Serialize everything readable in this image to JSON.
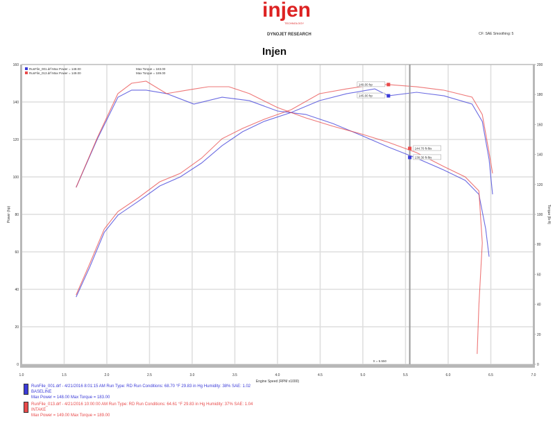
{
  "header": {
    "logo_text": "injen",
    "logo_subtext": "TECHNOLOGY",
    "company": "DYNOJET RESEARCH",
    "title": "Injen",
    "settings": "CF: SAE   Smoothing: 5"
  },
  "colors": {
    "baseline": "#3a3ad8",
    "intake": "#e84a4a",
    "grid": "#d8d8d8",
    "axis": "#9a9a9a"
  },
  "chart_data": {
    "type": "line",
    "xlabel": "Engine Speed (RPM x1000)",
    "ylabel_left": "Power (hp)",
    "ylabel_right": "Torque (lb-ft)",
    "xlim": [
      1.0,
      7.0
    ],
    "ylim_left": [
      0,
      160
    ],
    "ylim_right": [
      0,
      200
    ],
    "x_ticks": [
      "1.0",
      "1.5",
      "2.0",
      "2.5",
      "3.0",
      "3.5",
      "4.0",
      "4.5",
      "5.0",
      "5.5",
      "6.0",
      "6.5",
      "7.0"
    ],
    "y_ticks_left": [
      "0",
      "20",
      "40",
      "60",
      "80",
      "100",
      "120",
      "140",
      "160"
    ],
    "y_ticks_right": [
      "0",
      "20",
      "40",
      "60",
      "80",
      "100",
      "120",
      "140",
      "160",
      "180",
      "200"
    ],
    "grid": true,
    "legend_top": [
      {
        "text": "RunFile_001.drf Max Power = 148.00",
        "torque": "Max Torque = 183.00"
      },
      {
        "text": "RunFile_013.drf Max Power = 149.00",
        "torque": "Max Torque = 189.00"
      }
    ],
    "series": [
      {
        "name": "RunFile_001.drf",
        "quantity": "power",
        "axis": "left",
        "color": "#3a3ad8",
        "x": [
          1.64,
          1.8,
          1.97,
          2.13,
          2.37,
          2.62,
          2.86,
          3.11,
          3.35,
          3.59,
          3.84,
          4.16,
          4.49,
          4.81,
          5.14,
          5.3,
          5.63,
          5.95,
          6.28,
          6.4,
          6.48,
          6.52
        ],
        "y": [
          35.9,
          51.9,
          70.4,
          79.6,
          87.0,
          95.2,
          100.0,
          107.4,
          116.7,
          124.1,
          129.6,
          134.4,
          140.7,
          144.4,
          147.0,
          143.3,
          145.2,
          143.3,
          138.9,
          129.6,
          109.3,
          90.7
        ]
      },
      {
        "name": "RunFile_013.drf",
        "quantity": "power",
        "axis": "left",
        "color": "#e84a4a",
        "x": [
          1.64,
          1.8,
          1.97,
          2.13,
          2.37,
          2.62,
          2.86,
          3.11,
          3.35,
          3.59,
          3.84,
          4.16,
          4.49,
          4.81,
          5.14,
          5.3,
          5.63,
          5.95,
          6.28,
          6.4,
          6.48,
          6.52
        ],
        "y": [
          37.0,
          53.7,
          72.2,
          81.5,
          88.9,
          97.4,
          101.9,
          110.0,
          120.4,
          125.9,
          130.7,
          135.9,
          144.4,
          147.0,
          149.3,
          149.3,
          148.1,
          146.3,
          142.6,
          133.3,
          113.0,
          101.9
        ]
      },
      {
        "name": "RunFile_001.drf",
        "quantity": "torque",
        "axis": "right",
        "color": "#3a3ad8",
        "x": [
          1.64,
          1.89,
          2.13,
          2.29,
          2.46,
          2.7,
          3.02,
          3.35,
          3.67,
          4.0,
          4.33,
          4.65,
          4.98,
          5.3,
          5.63,
          5.95,
          6.2,
          6.36,
          6.44,
          6.48
        ],
        "y": [
          118.0,
          150.5,
          178.2,
          182.9,
          182.9,
          180.6,
          173.6,
          178.2,
          175.9,
          169.0,
          166.7,
          160.6,
          152.8,
          144.9,
          137.5,
          129.6,
          122.7,
          113.4,
          90.3,
          71.8
        ]
      },
      {
        "name": "RunFile_013.drf",
        "quantity": "torque",
        "axis": "right",
        "color": "#e84a4a",
        "x": [
          1.64,
          1.89,
          2.13,
          2.29,
          2.46,
          2.7,
          2.94,
          3.19,
          3.43,
          3.67,
          4.0,
          4.33,
          4.65,
          4.98,
          5.3,
          5.63,
          5.95,
          6.2,
          6.36,
          6.4,
          6.36,
          6.34
        ],
        "y": [
          118.0,
          151.4,
          180.6,
          187.5,
          188.9,
          180.6,
          182.9,
          185.2,
          185.2,
          180.6,
          171.3,
          164.4,
          158.8,
          153.7,
          148.1,
          141.2,
          131.9,
          125.0,
          115.7,
          81.0,
          39.4,
          6.9
        ]
      }
    ],
    "cursor": {
      "x": 5.55,
      "label": "X = 5.550"
    },
    "annotations": [
      {
        "text": "149.00 hp",
        "color": "#e84a4a",
        "x": 5.3,
        "y": 149.3,
        "axis": "left"
      },
      {
        "text": "145.00 hp",
        "color": "#3a3ad8",
        "x": 5.3,
        "y": 143.3,
        "axis": "left"
      },
      {
        "text": "144.70 ft-lbs",
        "color": "#e84a4a",
        "x": 5.55,
        "y": 144.0,
        "axis": "right"
      },
      {
        "text": "138.30 ft-lbs",
        "color": "#3a3ad8",
        "x": 5.55,
        "y": 138.0,
        "axis": "right"
      }
    ]
  },
  "legend_bottom": [
    {
      "color": "#3a3ad8",
      "line1": "RunFile_001.drf - 4/21/2016 8:01:15 AM  Run Type: RD  Run Conditions: 68.70 °F 29.83 in Hg  Humidity: 38%  SAE: 1.02",
      "line2": "BASELINE",
      "line3": "Max Power = 148.00  Max Torque = 183.00"
    },
    {
      "color": "#e84a4a",
      "line1": "RunFile_013.drf - 4/21/2016 10:00:00 AM  Run Type: RD  Run Conditions: 64.61 °F 29.83 in Hg  Humidity: 37%  SAE: 1.04",
      "line2": "INTAKE",
      "line3": "Max Power = 149.00  Max Torque = 189.00"
    }
  ]
}
